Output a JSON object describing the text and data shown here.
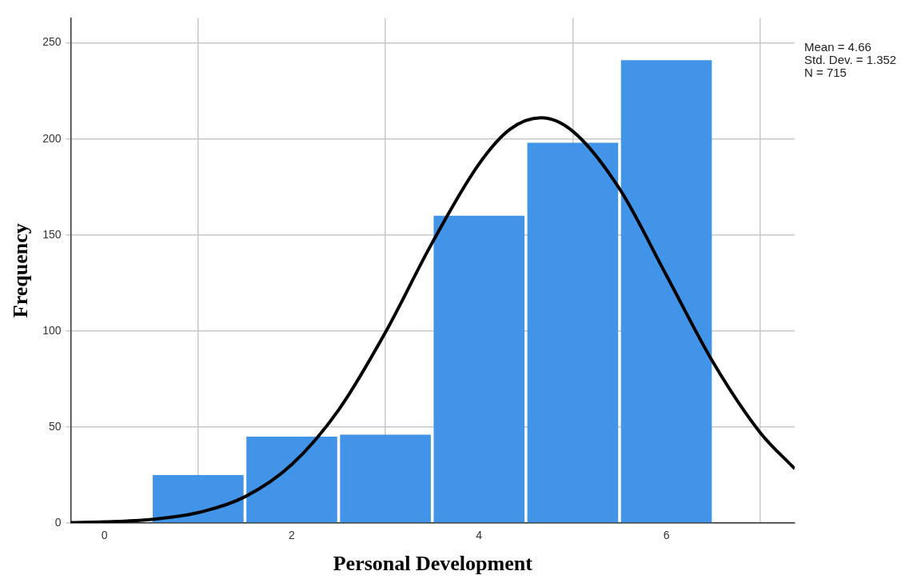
{
  "chart_data": {
    "type": "histogram",
    "xlabel": "Personal Development",
    "ylabel": "Frequency",
    "bins": [
      0.5,
      1.5,
      2.5,
      3.5,
      4.5,
      5.5,
      6.5
    ],
    "values": [
      25,
      45,
      46,
      160,
      198,
      241
    ],
    "color": "#4194e8",
    "series": [
      {
        "type": "line",
        "color": "#000000",
        "x": [
          -0.36,
          0,
          0.5,
          1,
          1.5,
          2,
          2.5,
          3,
          3.5,
          4,
          4.33,
          4.66,
          5,
          5.5,
          6,
          6.5,
          7,
          7.37
        ],
        "values": [
          0.2,
          0.6,
          1.9,
          5.4,
          13.7,
          30.5,
          58.9,
          99.3,
          146,
          187,
          205,
          211,
          204,
          174,
          129,
          83.6,
          47.2,
          28.3
        ]
      }
    ],
    "xlim": [
      -0.36,
      7.37
    ],
    "xticks": [
      0,
      2,
      4,
      6
    ],
    "ylim": [
      0,
      263
    ],
    "yticks": [
      0,
      50,
      100,
      150,
      200,
      250
    ],
    "grid": true,
    "legend": false,
    "annotations": [
      "Mean = 4.66",
      "Std. Dev. = 1.352",
      "N = 715"
    ]
  }
}
